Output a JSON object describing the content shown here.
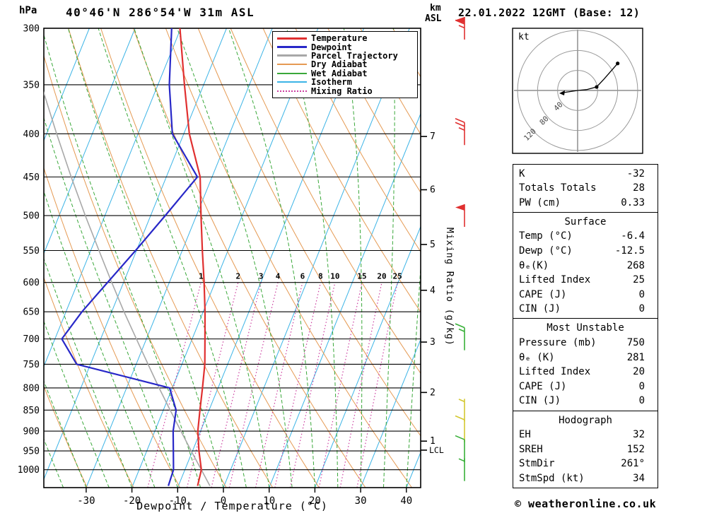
{
  "header": {
    "station": "40°46'N 286°54'W 31m ASL",
    "datetime": "22.01.2022 12GMT (Base: 12)"
  },
  "axes": {
    "pressure_unit": "hPa",
    "km_label_line1": "km",
    "km_label_line2": "ASL",
    "xlabel": "Dewpoint / Temperature (°C)",
    "mixing_ratio_label": "Mixing Ratio (g/kg)",
    "pressure_ticks": [
      300,
      350,
      400,
      450,
      500,
      550,
      600,
      650,
      700,
      750,
      800,
      850,
      900,
      950,
      1000
    ],
    "temp_ticks": [
      -30,
      -20,
      -10,
      0,
      10,
      20,
      30,
      40
    ],
    "km_ticks": [
      {
        "label": "7",
        "pressure": 403
      },
      {
        "label": "6",
        "pressure": 466
      },
      {
        "label": "5",
        "pressure": 541
      },
      {
        "label": "4",
        "pressure": 613
      },
      {
        "label": "3",
        "pressure": 706
      },
      {
        "label": "2",
        "pressure": 810
      },
      {
        "label": "1",
        "pressure": 925
      }
    ],
    "lcl": {
      "label": "LCL",
      "pressure": 948
    }
  },
  "legend": {
    "items": [
      {
        "label": "Temperature",
        "color": "#e03030",
        "dash": "solid",
        "width": 2
      },
      {
        "label": "Dewpoint",
        "color": "#2828c8",
        "dash": "solid",
        "width": 2
      },
      {
        "label": "Parcel Trajectory",
        "color": "#a8a8a8",
        "dash": "solid",
        "width": 2
      },
      {
        "label": "Dry Adiabat",
        "color": "#e59a53",
        "dash": "solid",
        "width": 1
      },
      {
        "label": "Wet Adiabat",
        "color": "#3aa83a",
        "dash": "solid",
        "width": 1
      },
      {
        "label": "Isotherm",
        "color": "#3cb4e6",
        "dash": "solid",
        "width": 1
      },
      {
        "label": "Mixing Ratio",
        "color": "#cc3fa0",
        "dash": "dotted",
        "width": 1
      }
    ]
  },
  "chart_data": {
    "type": "line",
    "pressure_range_hPa": [
      1050,
      300
    ],
    "sounding": {
      "pressure_hPa": [
        1045,
        1000,
        950,
        900,
        850,
        800,
        750,
        700,
        650,
        600,
        550,
        500,
        450,
        400,
        350,
        300
      ],
      "temperature_C": [
        -5.8,
        -6.4,
        -8.6,
        -10.6,
        -12.0,
        -13.4,
        -15.0,
        -17.2,
        -19.6,
        -22.4,
        -25.6,
        -29.0,
        -32.6,
        -38.8,
        -44.2,
        -50.2
      ],
      "dewpoint_C": [
        -12.2,
        -12.5,
        -14.2,
        -16.0,
        -17.2,
        -20.6,
        -43.0,
        -48.5,
        -46.5,
        -43.5,
        -40.2,
        -36.8,
        -33.2,
        -42.5,
        -47.5,
        -52.0
      ],
      "parcel_C": [
        -3.1,
        -6.4,
        -10.3,
        -14.3,
        -18.5,
        -22.9,
        -27.4,
        -32.2,
        -37.3,
        -42.6,
        -48.2,
        -54.3,
        -60.8,
        -67.8,
        -75.5,
        -84.0
      ]
    },
    "background": {
      "isotherms_C": {
        "min": -110,
        "max": 40,
        "step": 10
      },
      "dry_adiabats_K": {
        "min": 220,
        "max": 400,
        "step": 10
      },
      "wet_adiabats_C": {
        "min": -55,
        "max": 40,
        "step": 5
      },
      "mixing_ratios_gkg": [
        1,
        2,
        3,
        4,
        6,
        8,
        10,
        15,
        20,
        25
      ]
    },
    "wind_barbs": [
      {
        "pressure": 300,
        "speed_kt": 65,
        "color": "#e03030"
      },
      {
        "pressure": 400,
        "speed_kt": 25,
        "color": "#e03030"
      },
      {
        "pressure": 500,
        "speed_kt": 50,
        "color": "#e03030"
      },
      {
        "pressure": 700,
        "speed_kt": 15,
        "color": "#38b038"
      },
      {
        "pressure": 850,
        "speed_kt": 5,
        "color": "#d4c830"
      },
      {
        "pressure": 900,
        "speed_kt": 10,
        "color": "#d4c830"
      },
      {
        "pressure": 950,
        "speed_kt": 10,
        "color": "#38b038"
      },
      {
        "pressure": 1000,
        "speed_kt": 5,
        "color": "#38b038"
      }
    ],
    "hodograph": {
      "unit": "kt",
      "rings_kt": [
        40,
        80,
        120
      ],
      "trace_kt": [
        [
          0,
          0
        ],
        [
          19,
          2
        ],
        [
          38,
          7
        ],
        [
          53,
          23
        ],
        [
          80,
          54
        ]
      ],
      "dot_indices": [
        2,
        4
      ]
    }
  },
  "table": {
    "groups": [
      {
        "header": null,
        "rows": [
          [
            "K",
            "-32"
          ],
          [
            "Totals Totals",
            "28"
          ],
          [
            "PW (cm)",
            "0.33"
          ]
        ]
      },
      {
        "header": "Surface",
        "rows": [
          [
            "Temp (°C)",
            "-6.4"
          ],
          [
            "Dewp (°C)",
            "-12.5"
          ],
          [
            "θₑ(K)",
            "268"
          ],
          [
            "Lifted Index",
            "25"
          ],
          [
            "CAPE (J)",
            "0"
          ],
          [
            "CIN (J)",
            "0"
          ]
        ]
      },
      {
        "header": "Most Unstable",
        "rows": [
          [
            "Pressure (mb)",
            "750"
          ],
          [
            "θₑ (K)",
            "281"
          ],
          [
            "Lifted Index",
            "20"
          ],
          [
            "CAPE (J)",
            "0"
          ],
          [
            "CIN (J)",
            "0"
          ]
        ]
      },
      {
        "header": "Hodograph",
        "rows": [
          [
            "EH",
            "32"
          ],
          [
            "SREH",
            "152"
          ],
          [
            "StmDir",
            "261°"
          ],
          [
            "StmSpd (kt)",
            "34"
          ]
        ]
      }
    ]
  },
  "footer": {
    "copyright": "© weatheronline.co.uk"
  },
  "colors": {
    "temperature": "#e03030",
    "dewpoint": "#2828c8",
    "parcel": "#a8a8a8",
    "dry_adiabat": "#e59a53",
    "wet_adiabat": "#3aa83a",
    "isotherm": "#3cb4e6",
    "mixing_ratio": "#cc3fa0",
    "grid": "#000000"
  }
}
